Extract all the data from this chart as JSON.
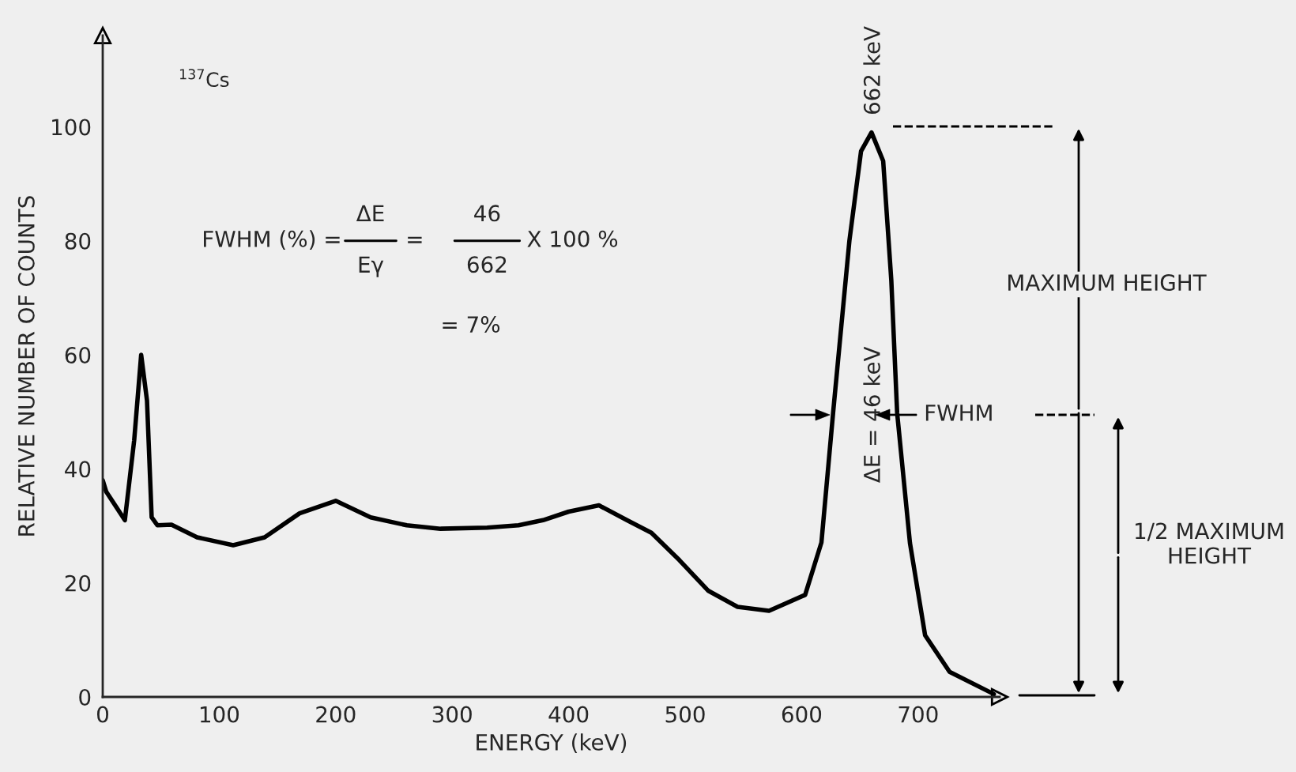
{
  "chart_data": {
    "type": "line",
    "xlabel": "ENERGY (keV)",
    "ylabel": "RELATIVE NUMBER OF COUNTS",
    "x": [
      0,
      3,
      19,
      27,
      33,
      38,
      42,
      47,
      59,
      81,
      112,
      139,
      169,
      200,
      230,
      261,
      290,
      330,
      357,
      378,
      400,
      426,
      450,
      471,
      495,
      520,
      545,
      572,
      603,
      617,
      627,
      641,
      651,
      660,
      670,
      677,
      682,
      693,
      706,
      727,
      765
    ],
    "series": [
      {
        "color": "#000000",
        "values": [
          38,
          36,
          31,
          45,
          60,
          52,
          31.5,
          30.1,
          30.2,
          28,
          26.6,
          28,
          32.2,
          34.4,
          31.5,
          30.1,
          29.5,
          29.7,
          30.1,
          31,
          32.5,
          33.6,
          31,
          28.8,
          24,
          18.6,
          15.8,
          15.1,
          17.9,
          27.1,
          49.8,
          80,
          95.7,
          99,
          94,
          73,
          49.8,
          27,
          10.8,
          4.4,
          0.5
        ]
      }
    ],
    "xlim": [
      0,
      770
    ],
    "ylim": [
      0,
      116
    ],
    "xticks": [
      0,
      100,
      200,
      300,
      400,
      500,
      600,
      700
    ],
    "yticks": [
      0,
      20,
      40,
      60,
      80,
      100
    ],
    "grid": false,
    "marker": "none",
    "line_style": "solid",
    "annotations": [
      "$^{137}$Cs",
      "FWHM (%) =",
      "ΔE",
      "Eγ",
      "=",
      "46",
      "662",
      "X 100 %",
      "= 7%",
      "662 keV",
      "ΔE = 46 keV",
      "FWHM",
      "MAXIMUM HEIGHT",
      "1/2 MAXIMUM HEIGHT"
    ]
  }
}
